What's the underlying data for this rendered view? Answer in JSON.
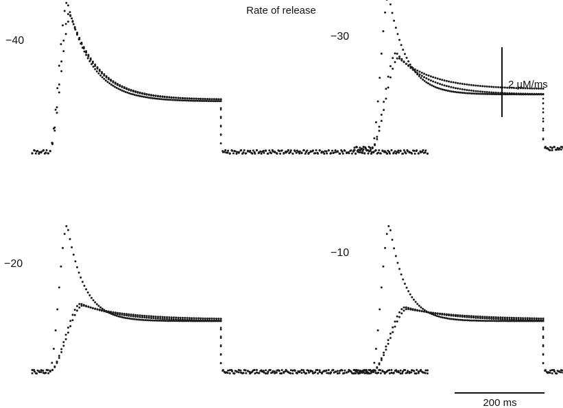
{
  "chart_data": {
    "type": "scatter",
    "title": "Rate of release",
    "xlabel": "",
    "ylabel": "",
    "grid": false,
    "time_scale_bar": {
      "value": 200,
      "unit": "ms",
      "label": "200 ms"
    },
    "rate_scale_bar": {
      "value": 2,
      "unit": "µM/ms",
      "label": "2 µM/ms"
    },
    "panels": [
      {
        "label": "−40",
        "pulse": {
          "on_ms": 38,
          "off_ms": 420,
          "end_ms": 880
        },
        "series": [
          {
            "peak": 4.3,
            "steady": 1.45,
            "rise_ms": 40,
            "tau_ms": 55
          },
          {
            "peak": 4.0,
            "steady": 1.5,
            "rise_ms": 45,
            "tau_ms": 60
          },
          {
            "peak": 3.9,
            "steady": 1.5,
            "rise_ms": 48,
            "tau_ms": 62
          }
        ]
      },
      {
        "label": "−30",
        "pulse": {
          "on_ms": 38,
          "off_ms": 420,
          "end_ms": 880
        },
        "series": [
          {
            "peak": 4.4,
            "steady": 1.55,
            "rise_ms": 38,
            "tau_ms": 40
          },
          {
            "peak": 2.75,
            "steady": 1.55,
            "rise_ms": 55,
            "tau_ms": 70
          },
          {
            "peak": 2.6,
            "steady": 1.7,
            "rise_ms": 60,
            "tau_ms": 80
          }
        ]
      },
      {
        "label": "−20",
        "pulse": {
          "on_ms": 38,
          "off_ms": 420,
          "end_ms": 880
        },
        "series": [
          {
            "peak": 4.2,
            "steady": 1.45,
            "rise_ms": 40,
            "tau_ms": 38
          },
          {
            "peak": 1.95,
            "steady": 1.45,
            "rise_ms": 70,
            "tau_ms": 90
          },
          {
            "peak": 1.9,
            "steady": 1.5,
            "rise_ms": 75,
            "tau_ms": 100
          }
        ]
      },
      {
        "label": "−10",
        "pulse": {
          "on_ms": 38,
          "off_ms": 420,
          "end_ms": 880
        },
        "series": [
          {
            "peak": 4.2,
            "steady": 1.45,
            "rise_ms": 40,
            "tau_ms": 36
          },
          {
            "peak": 1.85,
            "steady": 1.45,
            "rise_ms": 75,
            "tau_ms": 110
          },
          {
            "peak": 1.8,
            "steady": 1.5,
            "rise_ms": 80,
            "tau_ms": 120
          }
        ]
      }
    ]
  }
}
